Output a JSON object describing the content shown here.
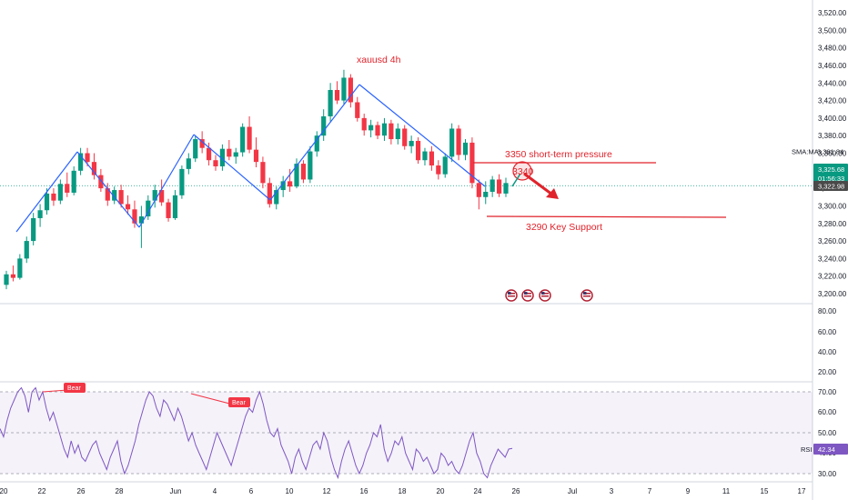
{
  "chart_data": {
    "type": "candlestick",
    "title": "xauusd 4h",
    "price_axis": {
      "ticks": [
        "3,520.00",
        "3,500.00",
        "3,480.00",
        "3,460.00",
        "3,440.00",
        "3,420.00",
        "3,400.00",
        "3,380.00",
        "3,360.00",
        "3,340.00",
        "3,320.00",
        "3,300.00",
        "3,280.00",
        "3,260.00",
        "3,240.00",
        "3,220.00",
        "3,200.00"
      ],
      "range": [
        3200,
        3520
      ]
    },
    "time_axis": {
      "ticks": [
        "20",
        "22",
        "26",
        "28",
        "Jun",
        "4",
        "6",
        "10",
        "12",
        "16",
        "18",
        "20",
        "24",
        "26",
        "Jul",
        "3",
        "7",
        "9",
        "11",
        "15",
        "17"
      ]
    },
    "candles": [
      [
        3210,
        3226,
        3205,
        3222
      ],
      [
        3222,
        3232,
        3214,
        3218
      ],
      [
        3218,
        3245,
        3216,
        3240
      ],
      [
        3240,
        3265,
        3235,
        3260
      ],
      [
        3260,
        3292,
        3255,
        3286
      ],
      [
        3286,
        3302,
        3276,
        3295
      ],
      [
        3295,
        3320,
        3290,
        3314
      ],
      [
        3314,
        3320,
        3300,
        3306
      ],
      [
        3306,
        3330,
        3302,
        3325
      ],
      [
        3325,
        3338,
        3310,
        3315
      ],
      [
        3315,
        3345,
        3312,
        3340
      ],
      [
        3340,
        3366,
        3335,
        3360
      ],
      [
        3360,
        3366,
        3345,
        3350
      ],
      [
        3350,
        3360,
        3330,
        3335
      ],
      [
        3335,
        3342,
        3316,
        3320
      ],
      [
        3320,
        3326,
        3300,
        3306
      ],
      [
        3306,
        3322,
        3302,
        3318
      ],
      [
        3318,
        3324,
        3298,
        3302
      ],
      [
        3302,
        3312,
        3290,
        3296
      ],
      [
        3296,
        3306,
        3275,
        3280
      ],
      [
        3280,
        3300,
        3252,
        3288
      ],
      [
        3288,
        3312,
        3284,
        3306
      ],
      [
        3306,
        3324,
        3298,
        3318
      ],
      [
        3318,
        3330,
        3300,
        3304
      ],
      [
        3304,
        3308,
        3282,
        3286
      ],
      [
        3286,
        3318,
        3284,
        3312
      ],
      [
        3312,
        3346,
        3308,
        3342
      ],
      [
        3342,
        3360,
        3336,
        3354
      ],
      [
        3354,
        3380,
        3350,
        3376
      ],
      [
        3376,
        3385,
        3360,
        3366
      ],
      [
        3366,
        3372,
        3346,
        3352
      ],
      [
        3352,
        3358,
        3340,
        3345
      ],
      [
        3345,
        3370,
        3340,
        3365
      ],
      [
        3365,
        3375,
        3352,
        3356
      ],
      [
        3356,
        3366,
        3348,
        3361
      ],
      [
        3361,
        3394,
        3356,
        3390
      ],
      [
        3390,
        3402,
        3360,
        3364
      ],
      [
        3364,
        3378,
        3344,
        3350
      ],
      [
        3350,
        3356,
        3320,
        3326
      ],
      [
        3326,
        3332,
        3298,
        3302
      ],
      [
        3302,
        3322,
        3296,
        3318
      ],
      [
        3318,
        3334,
        3310,
        3328
      ],
      [
        3328,
        3342,
        3316,
        3322
      ],
      [
        3322,
        3354,
        3320,
        3348
      ],
      [
        3348,
        3352,
        3326,
        3330
      ],
      [
        3330,
        3368,
        3326,
        3362
      ],
      [
        3362,
        3385,
        3356,
        3380
      ],
      [
        3380,
        3410,
        3374,
        3402
      ],
      [
        3402,
        3440,
        3396,
        3432
      ],
      [
        3432,
        3442,
        3416,
        3420
      ],
      [
        3420,
        3455,
        3416,
        3446
      ],
      [
        3446,
        3450,
        3412,
        3418
      ],
      [
        3418,
        3424,
        3396,
        3400
      ],
      [
        3400,
        3405,
        3380,
        3386
      ],
      [
        3386,
        3398,
        3378,
        3392
      ],
      [
        3392,
        3396,
        3376,
        3380
      ],
      [
        3380,
        3400,
        3374,
        3394
      ],
      [
        3394,
        3398,
        3370,
        3376
      ],
      [
        3376,
        3394,
        3370,
        3388
      ],
      [
        3388,
        3392,
        3364,
        3368
      ],
      [
        3368,
        3380,
        3360,
        3374
      ],
      [
        3374,
        3378,
        3348,
        3352
      ],
      [
        3352,
        3366,
        3346,
        3362
      ],
      [
        3362,
        3368,
        3340,
        3346
      ],
      [
        3346,
        3352,
        3330,
        3336
      ],
      [
        3336,
        3360,
        3332,
        3356
      ],
      [
        3356,
        3394,
        3350,
        3388
      ],
      [
        3388,
        3392,
        3352,
        3358
      ],
      [
        3358,
        3376,
        3352,
        3372
      ],
      [
        3372,
        3378,
        3320,
        3326
      ],
      [
        3326,
        3330,
        3296,
        3310
      ],
      [
        3310,
        3328,
        3302,
        3316
      ],
      [
        3316,
        3334,
        3310,
        3330
      ],
      [
        3330,
        3336,
        3310,
        3314
      ],
      [
        3314,
        3332,
        3310,
        3326
      ]
    ],
    "studies": [
      {
        "label": "SMA:MA",
        "value": "3,361.84"
      }
    ],
    "price_badges": [
      {
        "value": "3,325.68",
        "countdown": "01:56:33",
        "color": "#089981"
      },
      {
        "value": "3,322.98",
        "color": "#4a4a4a"
      }
    ],
    "annotations": [
      {
        "text": "3350   short-term pressure",
        "value": 3346
      },
      {
        "text": "3290   Key Support",
        "value": 3287
      },
      {
        "text": "3340",
        "value": 3340
      }
    ],
    "volume_axis": {
      "ticks": [
        "80.00",
        "60.00",
        "40.00",
        "20.00"
      ]
    },
    "rsi": {
      "label": "RSI",
      "value": "42.34",
      "levels": [
        70,
        50,
        30
      ],
      "axis_ticks": [
        "70.00",
        "60.00",
        "50.00",
        "40.00",
        "30.00"
      ],
      "values": [
        52,
        48,
        56,
        62,
        66,
        70,
        72,
        68,
        60,
        70,
        72,
        66,
        70,
        62,
        56,
        60,
        54,
        48,
        42,
        38,
        46,
        40,
        44,
        38,
        36,
        40,
        44,
        46,
        40,
        36,
        32,
        38,
        42,
        46,
        36,
        30,
        34,
        40,
        46,
        54,
        60,
        66,
        70,
        68,
        62,
        58,
        66,
        64,
        60,
        56,
        62,
        58,
        52,
        46,
        50,
        44,
        40,
        36,
        32,
        38,
        44,
        50,
        46,
        42,
        38,
        34,
        40,
        46,
        52,
        58,
        62,
        60,
        66,
        70,
        64,
        56,
        50,
        48,
        52,
        44,
        40,
        36,
        30,
        38,
        42,
        36,
        32,
        38,
        44,
        46,
        42,
        50,
        46,
        38,
        32,
        28,
        36,
        42,
        46,
        40,
        34,
        30,
        34,
        40,
        44,
        50,
        48,
        54,
        42,
        36,
        40,
        46,
        44,
        48,
        40,
        36,
        32,
        42,
        40,
        36,
        38,
        34,
        30,
        32,
        40,
        38,
        34,
        36,
        32,
        30,
        34,
        40,
        46,
        50,
        40,
        36,
        30,
        28,
        34,
        38,
        42,
        40,
        38,
        42,
        42.34
      ],
      "divergences": [
        {
          "label": "Bear"
        },
        {
          "label": "Bear"
        }
      ]
    }
  }
}
